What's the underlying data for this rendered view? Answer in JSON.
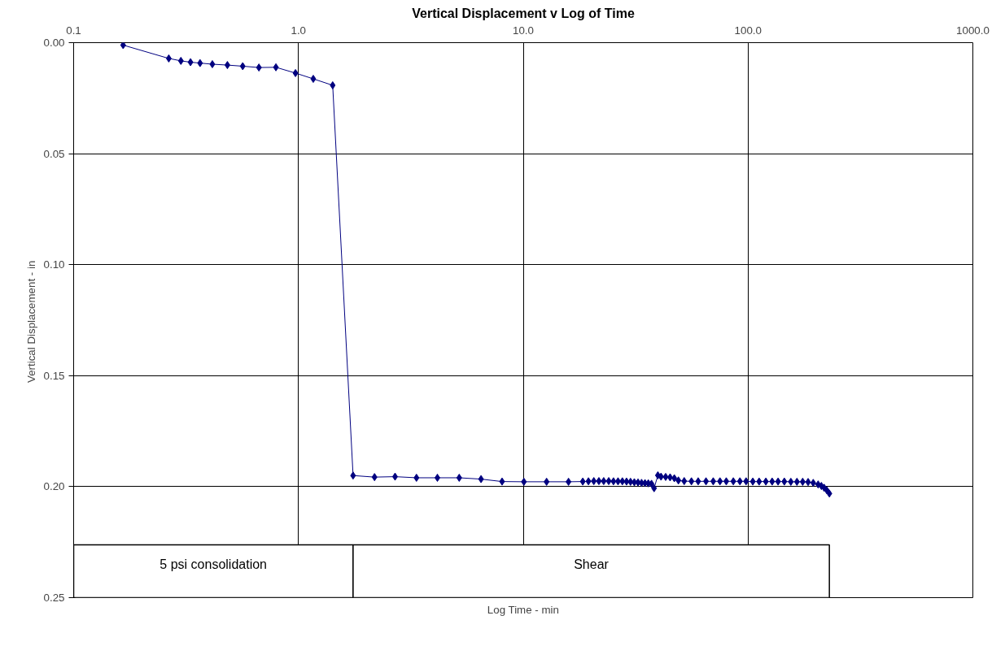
{
  "chart_data": {
    "type": "line",
    "title": "Vertical Displacement v Log of Time",
    "xlabel": "Log Time - min",
    "ylabel": "Vertical Displacement  - in",
    "log": "x",
    "grid": true,
    "marker": "diamond",
    "line_style": "solid",
    "xlim": [
      0.1,
      1000
    ],
    "xticks": [
      0.1,
      {
        "value": 1,
        "label": "1.0"
      },
      {
        "value": 10,
        "label": "10.0"
      },
      {
        "value": 100,
        "label": "100.0"
      },
      {
        "value": 1000,
        "label": "1000.0"
      }
    ],
    "ylim": [
      0.25,
      0.0
    ],
    "yticks": [
      {
        "value": 0,
        "label": "0.00"
      },
      {
        "value": 0.05,
        "label": "0.05"
      },
      {
        "value": 0.1,
        "label": "0.10"
      },
      {
        "value": 0.15,
        "label": "0.15"
      },
      {
        "value": 0.2,
        "label": "0.20"
      },
      {
        "value": 0.25,
        "label": "0.25"
      }
    ],
    "bands": [
      {
        "axis": "x",
        "from": 0.1,
        "to": 1.75,
        "label": "5 psi consolidation",
        "color": "#ffffff"
      },
      {
        "axis": "x",
        "from": 1.75,
        "to": 230,
        "label": "Shear",
        "color": "#ffffff"
      }
    ],
    "series": [
      {
        "color": "#000080",
        "x": [
          0.166,
          0.265,
          0.3,
          0.331,
          0.365,
          0.414,
          0.483,
          0.565,
          0.667,
          0.794,
          0.97,
          1.164,
          1.42,
          1.75,
          2.18,
          2.69,
          3.35,
          4.15,
          5.19,
          6.49,
          8.05,
          10.07,
          12.7,
          15.9,
          18.4,
          19.5,
          20.6,
          21.7,
          22.8,
          24,
          25.2,
          26.4,
          27.6,
          28.8,
          30,
          31.2,
          32.4,
          33.6,
          34.8,
          36,
          37.2,
          38.2,
          39.7,
          41,
          43,
          45,
          47,
          49,
          52,
          56,
          60,
          65,
          70,
          75,
          80,
          86,
          92,
          98,
          105,
          112,
          120,
          128,
          136,
          145,
          155,
          165,
          175,
          185,
          195,
          205,
          212,
          218,
          224,
          230
        ],
        "values": [
          0.0011,
          0.0071,
          0.0082,
          0.0088,
          0.0092,
          0.0097,
          0.0101,
          0.0106,
          0.0112,
          0.0111,
          0.0137,
          0.0163,
          0.0192,
          0.195,
          0.1957,
          0.1955,
          0.196,
          0.196,
          0.196,
          0.1966,
          0.1977,
          0.1978,
          0.1978,
          0.1978,
          0.1977,
          0.1976,
          0.1975,
          0.1975,
          0.1975,
          0.1975,
          0.1976,
          0.1976,
          0.1976,
          0.1977,
          0.1978,
          0.198,
          0.1981,
          0.1983,
          0.1984,
          0.1985,
          0.1987,
          0.2007,
          0.1949,
          0.1955,
          0.1956,
          0.1958,
          0.1962,
          0.1972,
          0.1975,
          0.1976,
          0.1976,
          0.1976,
          0.1976,
          0.1976,
          0.1976,
          0.1976,
          0.1976,
          0.1976,
          0.1977,
          0.1977,
          0.1977,
          0.1977,
          0.1977,
          0.1977,
          0.1978,
          0.1978,
          0.1978,
          0.1979,
          0.1983,
          0.199,
          0.1997,
          0.2005,
          0.2016,
          0.2031
        ]
      }
    ]
  }
}
